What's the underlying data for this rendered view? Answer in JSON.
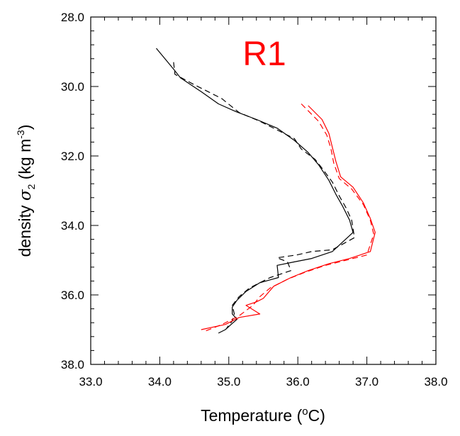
{
  "chart_data": {
    "type": "line",
    "title": "",
    "panel_label": "R1",
    "xlabel": {
      "text": "Temperature (",
      "sup": "o",
      "suffix": "C)"
    },
    "ylabel": {
      "prefix": "density ",
      "symbol": "σ",
      "subscript": "2",
      "unit_open": " (kg m",
      "sup": "-3",
      "unit_close": ")"
    },
    "xlim": [
      33.0,
      38.0
    ],
    "ylim": [
      28.0,
      38.0
    ],
    "y_inverted": true,
    "xticks": [
      33.0,
      34.0,
      35.0,
      36.0,
      37.0,
      38.0
    ],
    "xtick_labels": [
      "33.0",
      "34.0",
      "35.0",
      "36.0",
      "37.0",
      "38.0"
    ],
    "yticks": [
      28.0,
      30.0,
      32.0,
      34.0,
      36.0,
      38.0
    ],
    "ytick_labels": [
      "28.0",
      "30.0",
      "32.0",
      "34.0",
      "36.0",
      "38.0"
    ],
    "grid": false,
    "legend": "none",
    "colors": {
      "black": "#000000",
      "red": "#ff0000"
    },
    "series": [
      {
        "color": "#000000",
        "dash": "solid",
        "points": [
          [
            33.95,
            28.9
          ],
          [
            34.2,
            29.5
          ],
          [
            34.3,
            29.75
          ],
          [
            34.6,
            30.15
          ],
          [
            34.85,
            30.5
          ],
          [
            35.1,
            30.72
          ],
          [
            35.4,
            30.95
          ],
          [
            35.7,
            31.2
          ],
          [
            35.95,
            31.55
          ],
          [
            36.15,
            31.9
          ],
          [
            36.3,
            32.25
          ],
          [
            36.45,
            32.7
          ],
          [
            36.55,
            33.1
          ],
          [
            36.65,
            33.45
          ],
          [
            36.75,
            33.85
          ],
          [
            36.8,
            34.2
          ],
          [
            36.5,
            34.75
          ],
          [
            36.2,
            34.95
          ],
          [
            35.95,
            35.05
          ],
          [
            35.7,
            35.15
          ],
          [
            35.72,
            35.5
          ],
          [
            35.45,
            35.65
          ],
          [
            35.25,
            35.9
          ],
          [
            35.12,
            36.15
          ],
          [
            35.05,
            36.35
          ],
          [
            35.05,
            36.55
          ],
          [
            35.12,
            36.7
          ],
          [
            35.05,
            36.82
          ],
          [
            34.95,
            37.0
          ],
          [
            34.85,
            37.1
          ]
        ]
      },
      {
        "color": "#000000",
        "dash": "dashed",
        "points": [
          [
            34.2,
            29.3
          ],
          [
            34.22,
            29.65
          ],
          [
            34.5,
            29.95
          ],
          [
            34.7,
            30.15
          ],
          [
            34.9,
            30.35
          ],
          [
            35.15,
            30.75
          ],
          [
            35.45,
            31.0
          ],
          [
            35.8,
            31.35
          ],
          [
            35.95,
            31.5
          ],
          [
            36.05,
            31.8
          ],
          [
            36.25,
            32.1
          ],
          [
            36.35,
            32.35
          ],
          [
            36.5,
            32.75
          ],
          [
            36.6,
            33.15
          ],
          [
            36.7,
            33.5
          ],
          [
            36.78,
            33.85
          ],
          [
            36.82,
            34.35
          ],
          [
            36.5,
            34.7
          ],
          [
            36.2,
            34.75
          ],
          [
            35.98,
            34.85
          ],
          [
            35.7,
            34.93
          ],
          [
            35.85,
            35.05
          ],
          [
            35.9,
            35.3
          ],
          [
            35.6,
            35.5
          ],
          [
            35.3,
            35.8
          ],
          [
            35.15,
            36.05
          ],
          [
            35.05,
            36.3
          ],
          [
            35.08,
            36.55
          ],
          [
            35.05,
            36.75
          ],
          [
            34.97,
            36.95
          ]
        ]
      },
      {
        "color": "#ff0000",
        "dash": "solid",
        "points": [
          [
            36.15,
            30.55
          ],
          [
            36.35,
            30.95
          ],
          [
            36.45,
            31.35
          ],
          [
            36.5,
            31.75
          ],
          [
            36.55,
            32.15
          ],
          [
            36.62,
            32.6
          ],
          [
            36.8,
            32.9
          ],
          [
            36.95,
            33.35
          ],
          [
            37.05,
            33.8
          ],
          [
            37.12,
            34.2
          ],
          [
            37.05,
            34.75
          ],
          [
            36.75,
            34.95
          ],
          [
            36.45,
            35.1
          ],
          [
            36.15,
            35.3
          ],
          [
            35.9,
            35.5
          ],
          [
            35.65,
            35.75
          ],
          [
            35.5,
            36.1
          ],
          [
            35.4,
            36.2
          ],
          [
            35.25,
            36.3
          ],
          [
            35.45,
            36.55
          ],
          [
            35.15,
            36.65
          ],
          [
            34.95,
            36.85
          ],
          [
            34.6,
            37.0
          ]
        ]
      },
      {
        "color": "#ff0000",
        "dash": "dashed",
        "points": [
          [
            36.05,
            30.5
          ],
          [
            36.3,
            31.0
          ],
          [
            36.42,
            31.4
          ],
          [
            36.48,
            31.8
          ],
          [
            36.52,
            32.2
          ],
          [
            36.6,
            32.65
          ],
          [
            36.78,
            32.95
          ],
          [
            36.95,
            33.4
          ],
          [
            37.05,
            33.85
          ],
          [
            37.1,
            34.25
          ],
          [
            37.0,
            34.85
          ],
          [
            36.7,
            35.0
          ],
          [
            36.4,
            35.15
          ],
          [
            36.1,
            35.35
          ],
          [
            35.85,
            35.55
          ],
          [
            35.6,
            35.8
          ],
          [
            35.45,
            36.05
          ],
          [
            35.35,
            36.3
          ],
          [
            35.25,
            36.45
          ],
          [
            35.15,
            36.6
          ],
          [
            34.9,
            36.85
          ],
          [
            34.65,
            37.05
          ]
        ]
      }
    ]
  }
}
